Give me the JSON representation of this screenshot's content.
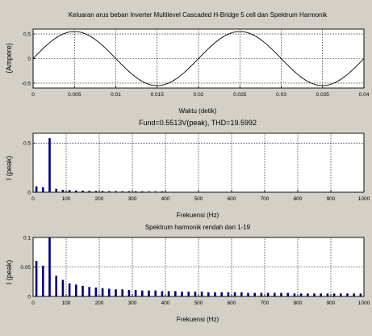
{
  "chart_data": [
    {
      "type": "line",
      "title": "Keluaran arus beban Inverter Multilevel Cascaded H-Bridge 5 cell dan Spektrum Harmonik",
      "xlabel": "Waktu (detik)",
      "ylabel": "(Ampere)",
      "xlim": [
        0,
        0.04
      ],
      "ylim": [
        -0.6,
        0.6
      ],
      "grid": true,
      "x_ticks": [
        "0",
        "0.005",
        "0.01",
        "0.015",
        "0.02",
        "0.025",
        "0.03",
        "0.035",
        "0.04"
      ],
      "y_ticks": [
        "-0.5",
        "0",
        "0.5"
      ],
      "series": [
        {
          "amplitude": 0.55,
          "frequency_hz": 50,
          "x": [
            0,
            0.00125,
            0.0025,
            0.00375,
            0.005,
            0.00625,
            0.0075,
            0.00875,
            0.01,
            0.01125,
            0.0125,
            0.01375,
            0.015,
            0.01625,
            0.0175,
            0.01875,
            0.02,
            0.02125,
            0.0225,
            0.02375,
            0.025,
            0.02625,
            0.0275,
            0.02875,
            0.03,
            0.03125,
            0.0325,
            0.03375,
            0.035,
            0.03625,
            0.0375,
            0.03875,
            0.04
          ],
          "y": [
            0,
            0.21,
            0.39,
            0.51,
            0.55,
            0.51,
            0.39,
            0.21,
            0,
            -0.21,
            -0.39,
            -0.51,
            -0.55,
            -0.51,
            -0.39,
            -0.21,
            0,
            0.21,
            0.39,
            0.51,
            0.55,
            0.51,
            0.39,
            0.21,
            0,
            -0.21,
            -0.39,
            -0.51,
            -0.55,
            -0.51,
            -0.39,
            -0.21,
            0
          ]
        }
      ]
    },
    {
      "type": "bar",
      "title": "Fund=0.5513V(peak), THD=19.5992",
      "xlabel": "Frekuensi (Hz)",
      "ylabel": "I (peak)",
      "xlim": [
        0,
        1000
      ],
      "ylim": [
        0,
        0.6
      ],
      "grid": true,
      "x_ticks": [
        "0",
        "100",
        "200",
        "300",
        "400",
        "500",
        "600",
        "700",
        "800",
        "900",
        "1000"
      ],
      "y_ticks": [
        "0",
        "0.5"
      ],
      "x": [
        10,
        30,
        50,
        70,
        90,
        110,
        130,
        150,
        170,
        190,
        210,
        230,
        250,
        270,
        290,
        310,
        330,
        350,
        370,
        390
      ],
      "values": [
        0.06,
        0.05,
        0.55,
        0.035,
        0.025,
        0.022,
        0.018,
        0.016,
        0.014,
        0.013,
        0.012,
        0.011,
        0.011,
        0.01,
        0.01,
        0.009,
        0.009,
        0.008,
        0.008,
        0.008
      ]
    },
    {
      "type": "bar",
      "title": "Spektrum harmonik rendah dari 1-19",
      "xlabel": "Frekuensi (Hz)",
      "ylabel": "I (peak)",
      "xlim": [
        0,
        1000
      ],
      "ylim": [
        0,
        0.1
      ],
      "grid": true,
      "x_ticks": [
        "0",
        "100",
        "200",
        "300",
        "400",
        "500",
        "600",
        "700",
        "800",
        "900",
        "1000"
      ],
      "y_ticks": [
        "0",
        "0.05",
        "0.1"
      ],
      "x": [
        10,
        30,
        50,
        70,
        90,
        110,
        130,
        150,
        170,
        190,
        210,
        230,
        250,
        270,
        290,
        310,
        330,
        350,
        370,
        390,
        410,
        430,
        450,
        470,
        490,
        510,
        530,
        550,
        570,
        590,
        610,
        630,
        650,
        670,
        690,
        710,
        730,
        750,
        770,
        790,
        810,
        830,
        850,
        870,
        890,
        910,
        930,
        950,
        970,
        990
      ],
      "values": [
        0.06,
        0.052,
        0.1,
        0.035,
        0.028,
        0.022,
        0.02,
        0.018,
        0.016,
        0.015,
        0.014,
        0.013,
        0.012,
        0.012,
        0.011,
        0.011,
        0.01,
        0.01,
        0.01,
        0.009,
        0.009,
        0.009,
        0.008,
        0.008,
        0.008,
        0.008,
        0.007,
        0.007,
        0.007,
        0.007,
        0.007,
        0.007,
        0.006,
        0.006,
        0.006,
        0.006,
        0.006,
        0.006,
        0.006,
        0.005,
        0.005,
        0.005,
        0.005,
        0.005,
        0.005,
        0.005,
        0.005,
        0.005,
        0.005,
        0.005
      ]
    }
  ],
  "colors": {
    "background": "#d4d0c8",
    "axes_bg": "#ffffff",
    "line": "#000000",
    "bar": "#000080",
    "grid": "#000000"
  }
}
